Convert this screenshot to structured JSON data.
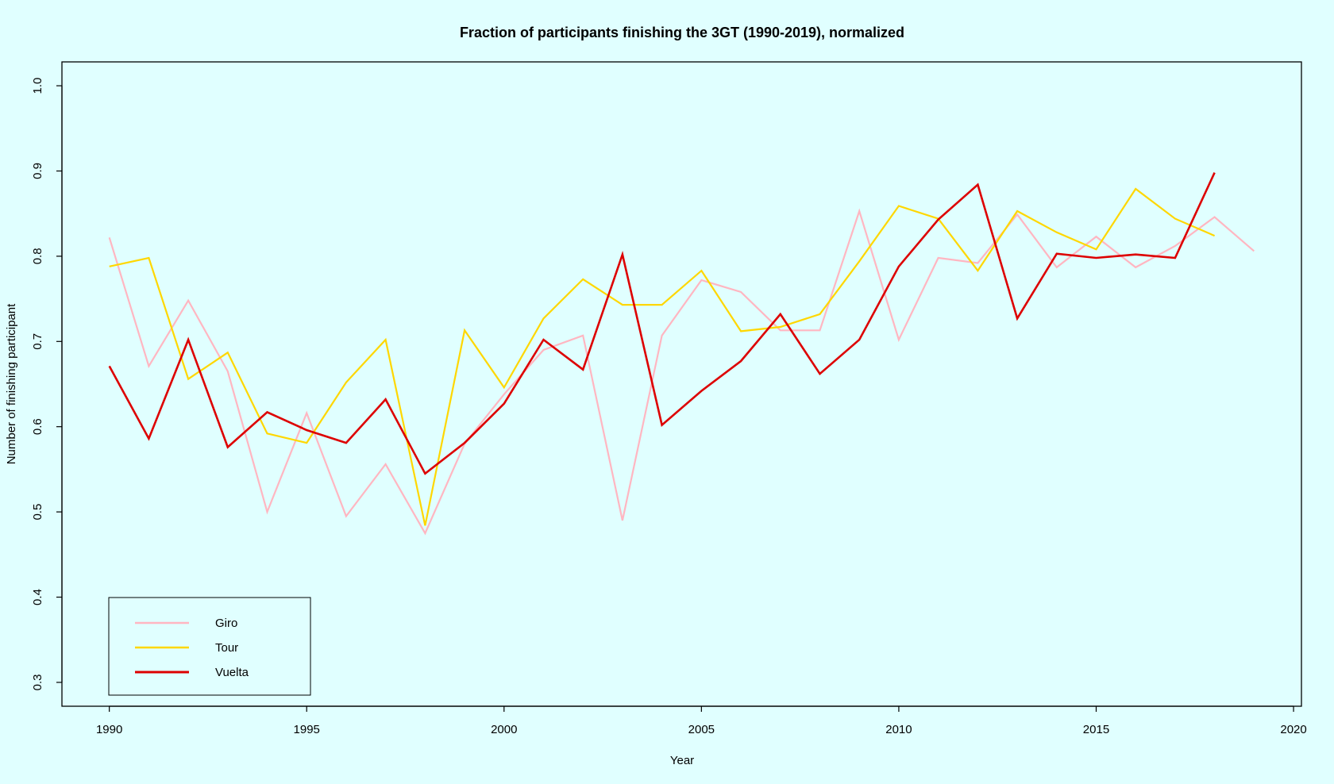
{
  "chart_data": {
    "type": "line",
    "title": "Fraction of participants finishing the 3GT (1990-2019), normalized",
    "xlabel": "Year",
    "ylabel": "Number of finishing participant",
    "xlim": [
      1988.8,
      2020.2
    ],
    "ylim": [
      0.272,
      1.028
    ],
    "x_ticks": [
      1990,
      1995,
      2000,
      2005,
      2010,
      2015,
      2020
    ],
    "y_ticks": [
      0.3,
      0.4,
      0.5,
      0.6,
      0.7,
      0.8,
      0.9,
      1.0
    ],
    "x_tick_labels": [
      "1990",
      "1995",
      "2000",
      "2005",
      "2010",
      "2015",
      "2020"
    ],
    "y_tick_labels": [
      "0.3",
      "0.4",
      "0.5",
      "0.6",
      "0.7",
      "0.8",
      "0.9",
      "1.0"
    ],
    "grid": false,
    "legend_position": "bottom-left",
    "series": [
      {
        "name": "Giro",
        "color": "#ffb6c1",
        "x": [
          1990,
          1991,
          1992,
          1993,
          1994,
          1995,
          1996,
          1997,
          1998,
          1999,
          2000,
          2001,
          2002,
          2003,
          2004,
          2005,
          2006,
          2007,
          2008,
          2009,
          2010,
          2011,
          2012,
          2013,
          2014,
          2015,
          2016,
          2017,
          2018,
          2019
        ],
        "y": [
          0.822,
          0.671,
          0.748,
          0.665,
          0.5,
          0.616,
          0.495,
          0.556,
          0.475,
          0.58,
          0.638,
          0.69,
          0.707,
          0.49,
          0.707,
          0.772,
          0.758,
          0.713,
          0.713,
          0.853,
          0.702,
          0.798,
          0.792,
          0.849,
          0.787,
          0.823,
          0.787,
          0.812,
          0.846,
          0.806
        ]
      },
      {
        "name": "Tour",
        "color": "#ffd700",
        "x": [
          1990,
          1991,
          1992,
          1993,
          1994,
          1995,
          1996,
          1997,
          1998,
          1999,
          2000,
          2001,
          2002,
          2003,
          2004,
          2005,
          2006,
          2007,
          2008,
          2009,
          2010,
          2011,
          2012,
          2013,
          2014,
          2015,
          2016,
          2017,
          2018
        ],
        "y": [
          0.788,
          0.798,
          0.656,
          0.687,
          0.592,
          0.581,
          0.652,
          0.702,
          0.484,
          0.713,
          0.646,
          0.727,
          0.773,
          0.743,
          0.743,
          0.783,
          0.712,
          0.717,
          0.732,
          0.794,
          0.859,
          0.844,
          0.783,
          0.853,
          0.828,
          0.808,
          0.879,
          0.844,
          0.824
        ]
      },
      {
        "name": "Vuelta",
        "color": "#dd0000",
        "x": [
          1990,
          1991,
          1992,
          1993,
          1994,
          1995,
          1996,
          1997,
          1998,
          1999,
          2000,
          2001,
          2002,
          2003,
          2004,
          2005,
          2006,
          2007,
          2008,
          2009,
          2010,
          2011,
          2012,
          2013,
          2014,
          2015,
          2016,
          2017,
          2018
        ],
        "y": [
          0.671,
          0.586,
          0.702,
          0.576,
          0.617,
          0.596,
          0.581,
          0.632,
          0.545,
          0.581,
          0.627,
          0.702,
          0.667,
          0.802,
          0.602,
          0.642,
          0.677,
          0.732,
          0.662,
          0.702,
          0.788,
          0.843,
          0.884,
          0.727,
          0.803,
          0.798,
          0.802,
          0.798,
          0.898
        ]
      }
    ]
  }
}
